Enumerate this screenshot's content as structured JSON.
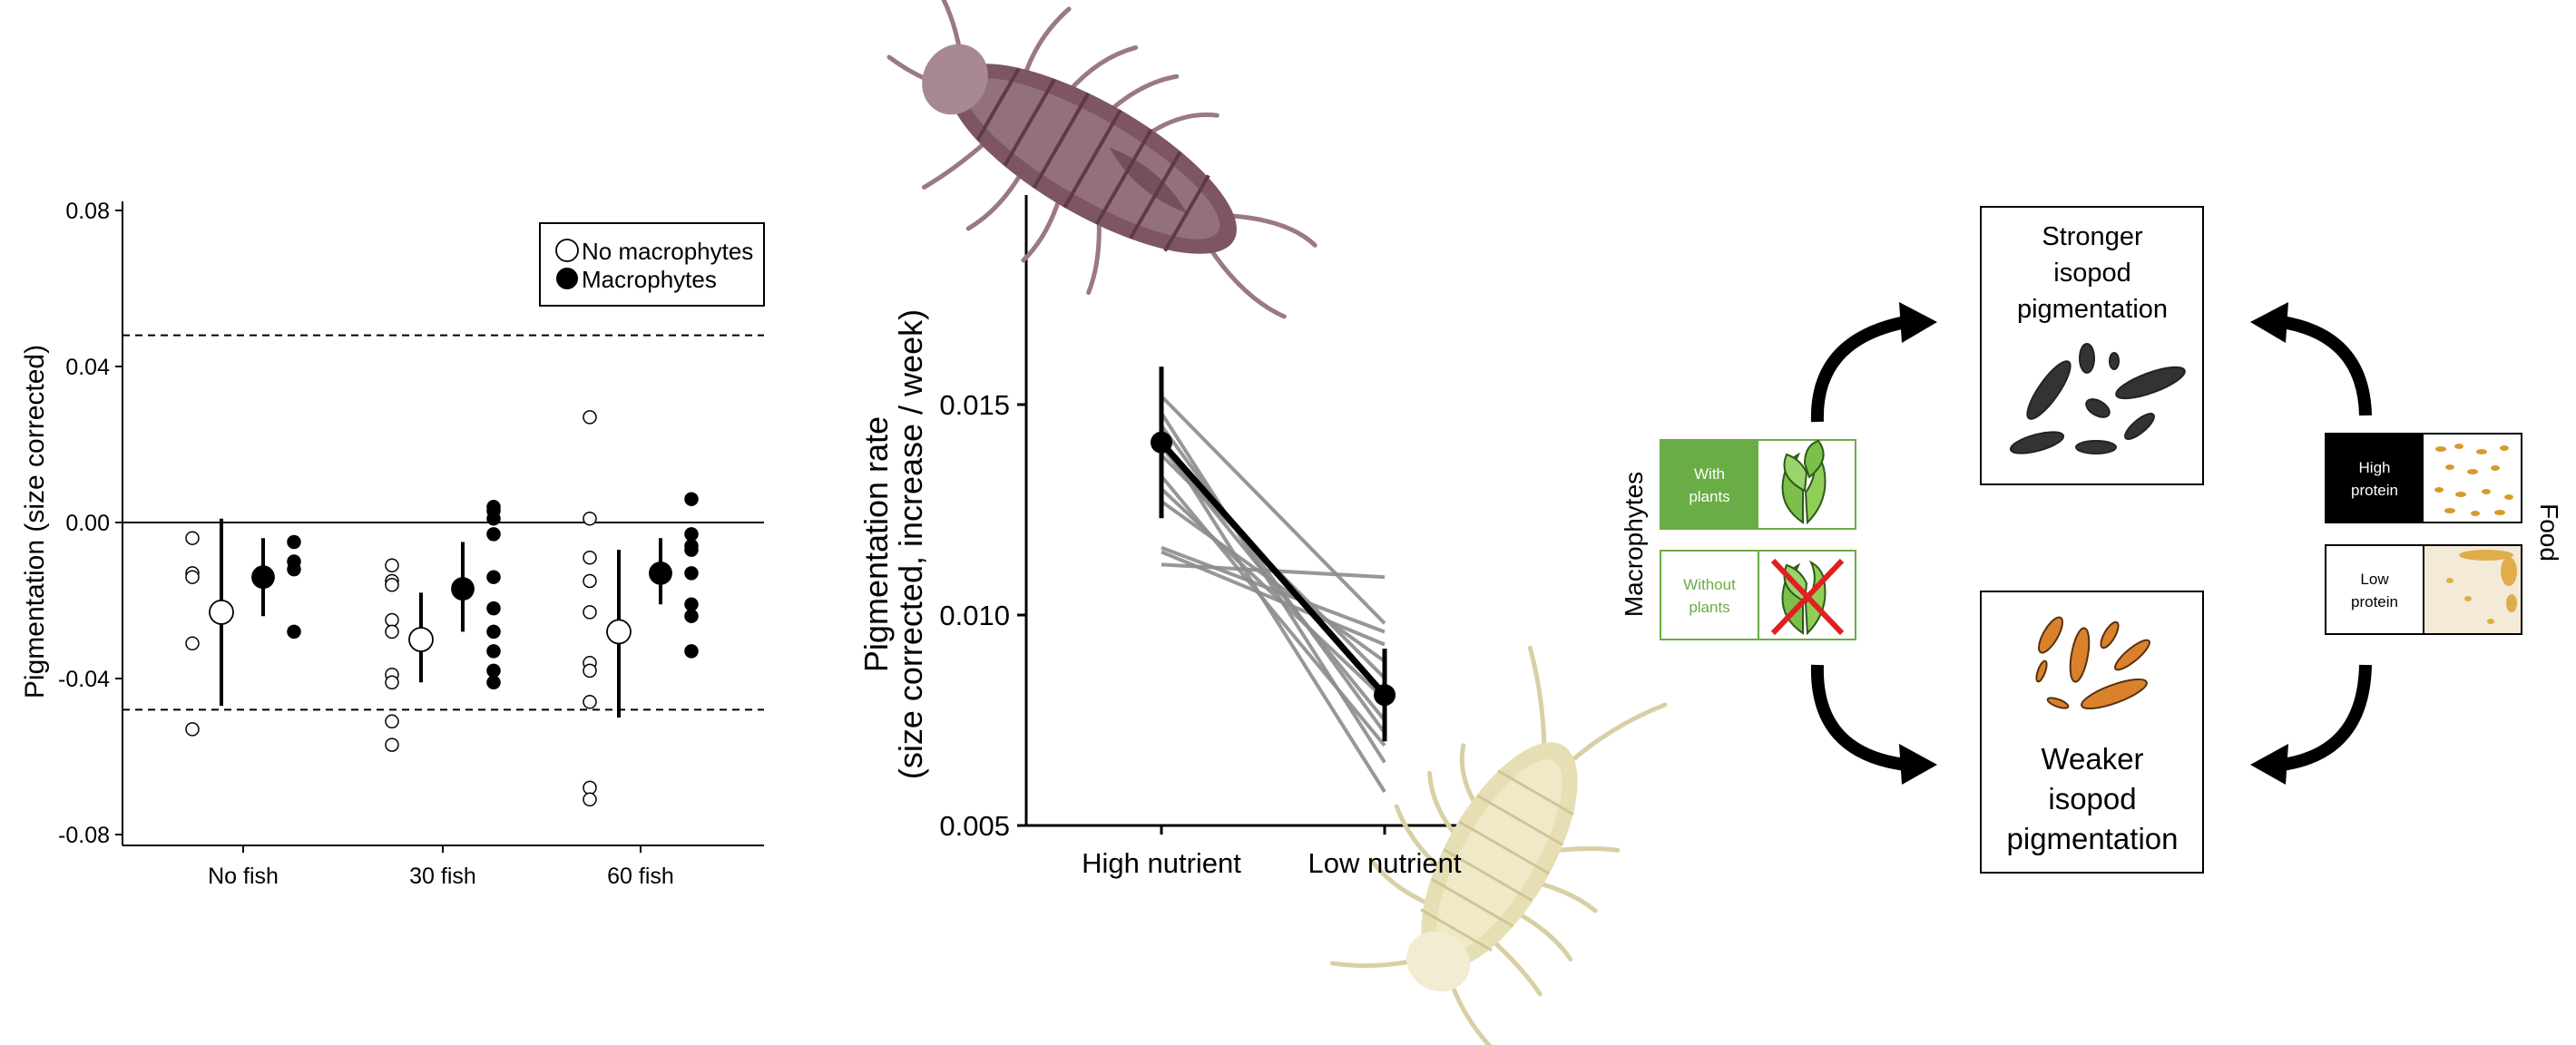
{
  "chart_data": [
    {
      "type": "scatter",
      "title": "",
      "xlabel": "",
      "ylabel": "Pigmentation (size corrected)",
      "ylim": [
        -0.08,
        0.08
      ],
      "yticks": [
        "0.08",
        "0.04",
        "0.00",
        "-0.04",
        "-0.08"
      ],
      "ytick_values": [
        0.08,
        0.04,
        0.0,
        -0.04,
        -0.08
      ],
      "categories": [
        "No fish",
        "30 fish",
        "60 fish"
      ],
      "reference_lines": {
        "solid": 0.0,
        "dashed": [
          0.048,
          -0.048
        ]
      },
      "legend": {
        "position": "top-right",
        "entries": [
          "No macrophytes",
          "Macrophytes"
        ]
      },
      "series": [
        {
          "name": "No macrophytes",
          "fill": "#ffffff",
          "points": [
            [
              -0.004,
              -0.013,
              -0.014,
              -0.031,
              -0.053
            ],
            [
              -0.011,
              -0.015,
              -0.016,
              -0.025,
              -0.028,
              -0.039,
              -0.041,
              -0.051,
              -0.057
            ],
            [
              0.027,
              0.001,
              -0.009,
              -0.015,
              -0.023,
              -0.036,
              -0.038,
              -0.046,
              -0.068,
              -0.071
            ]
          ],
          "means": [
            -0.023,
            -0.03,
            -0.028
          ],
          "ci_low": [
            -0.047,
            -0.041,
            -0.05
          ],
          "ci_high": [
            0.001,
            -0.018,
            -0.007
          ]
        },
        {
          "name": "Macrophytes",
          "fill": "#000000",
          "points": [
            [
              -0.005,
              -0.01,
              -0.012,
              -0.028
            ],
            [
              0.004,
              0.003,
              0.001,
              -0.003,
              -0.014,
              -0.022,
              -0.028,
              -0.033,
              -0.038,
              -0.041
            ],
            [
              0.006,
              -0.003,
              -0.006,
              -0.007,
              -0.013,
              -0.021,
              -0.024,
              -0.033
            ]
          ],
          "means": [
            -0.014,
            -0.017,
            -0.013
          ],
          "ci_low": [
            -0.024,
            -0.028,
            -0.021
          ],
          "ci_high": [
            -0.004,
            -0.005,
            -0.004
          ]
        }
      ]
    },
    {
      "type": "line",
      "title": "",
      "xlabel": "",
      "ylabel": "Pigmentation rate\n(size corrected, increase / week)",
      "ylim": [
        0.005,
        0.0195
      ],
      "yticks": [
        "0.015",
        "0.010",
        "0.005"
      ],
      "ytick_values": [
        0.015,
        0.01,
        0.005
      ],
      "categories": [
        "High nutrient",
        "Low nutrient"
      ],
      "mean_line": {
        "values": [
          0.0141,
          0.0081
        ],
        "ci_low": [
          0.0123,
          0.007
        ],
        "ci_high": [
          0.0159,
          0.0092
        ]
      },
      "individual_lines": [
        [
          0.0152,
          0.0098
        ],
        [
          0.0148,
          0.0065
        ],
        [
          0.0145,
          0.0072
        ],
        [
          0.0142,
          0.0058
        ],
        [
          0.014,
          0.0075
        ],
        [
          0.0138,
          0.0085
        ],
        [
          0.0133,
          0.0069
        ],
        [
          0.013,
          0.008
        ],
        [
          0.0127,
          0.0089
        ],
        [
          0.0116,
          0.0096
        ],
        [
          0.0115,
          0.0093
        ],
        [
          0.0112,
          0.0109
        ]
      ]
    }
  ],
  "diagram": {
    "macrophytes_label": "Macrophytes",
    "food_label": "Food",
    "with_plants": "With\nplants",
    "without_plants": "Without\nplants",
    "high_protein": "High\nprotein",
    "low_protein": "Low\nprotein",
    "stronger": "Stronger\nisopod\npigmentation",
    "weaker": "Weaker\nisopod\npigmentation",
    "colors": {
      "green": "#6aac45",
      "light_green": "#8fbf6a",
      "cross_red": "#e02020",
      "dark_isopod": "#7a4a5a",
      "pale_isopod": "#e9e2b8",
      "orange_isopod": "#d9822b"
    }
  }
}
